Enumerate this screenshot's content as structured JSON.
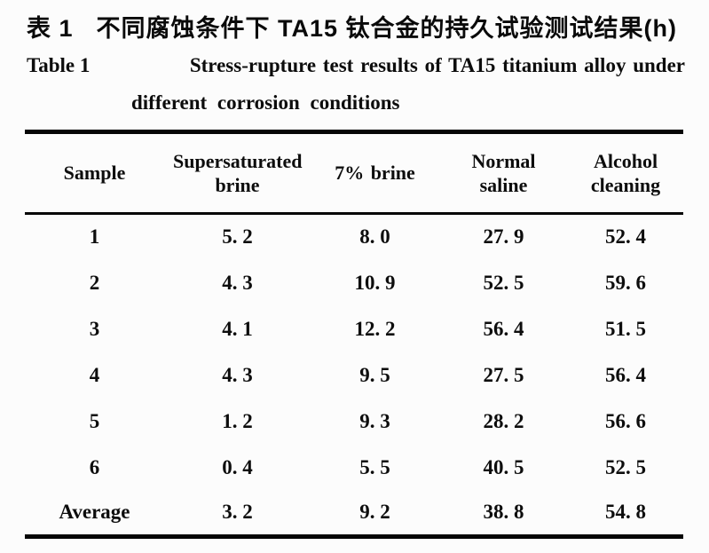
{
  "page": {
    "background": "#fcfcfc",
    "ink": "#0d0d0d"
  },
  "title": {
    "zh_label": "表 1",
    "zh_text": "不同腐蚀条件下 TA15 钛合金的持久试验测试结果(h)",
    "en_label": "Table 1",
    "en_line1": "Stress-rupture test results of TA15 titanium alloy under",
    "en_line2": "different corrosion conditions"
  },
  "table": {
    "headers": [
      "Sample",
      "Supersaturated brine",
      "7% brine",
      "Normal saline",
      "Alcohol cleaning"
    ],
    "rows": [
      {
        "label": "1",
        "values": [
          "5. 2",
          "8. 0",
          "27. 9",
          "52. 4"
        ]
      },
      {
        "label": "2",
        "values": [
          "4. 3",
          "10. 9",
          "52. 5",
          "59. 6"
        ]
      },
      {
        "label": "3",
        "values": [
          "4. 1",
          "12. 2",
          "56. 4",
          "51. 5"
        ]
      },
      {
        "label": "4",
        "values": [
          "4. 3",
          "9. 5",
          "27. 5",
          "56. 4"
        ]
      },
      {
        "label": "5",
        "values": [
          "1. 2",
          "9. 3",
          "28. 2",
          "56. 6"
        ]
      },
      {
        "label": "6",
        "values": [
          "0. 4",
          "5. 5",
          "40. 5",
          "52. 5"
        ]
      },
      {
        "label": "Average",
        "values": [
          "3. 2",
          "9. 2",
          "38. 8",
          "54. 8"
        ]
      }
    ]
  }
}
